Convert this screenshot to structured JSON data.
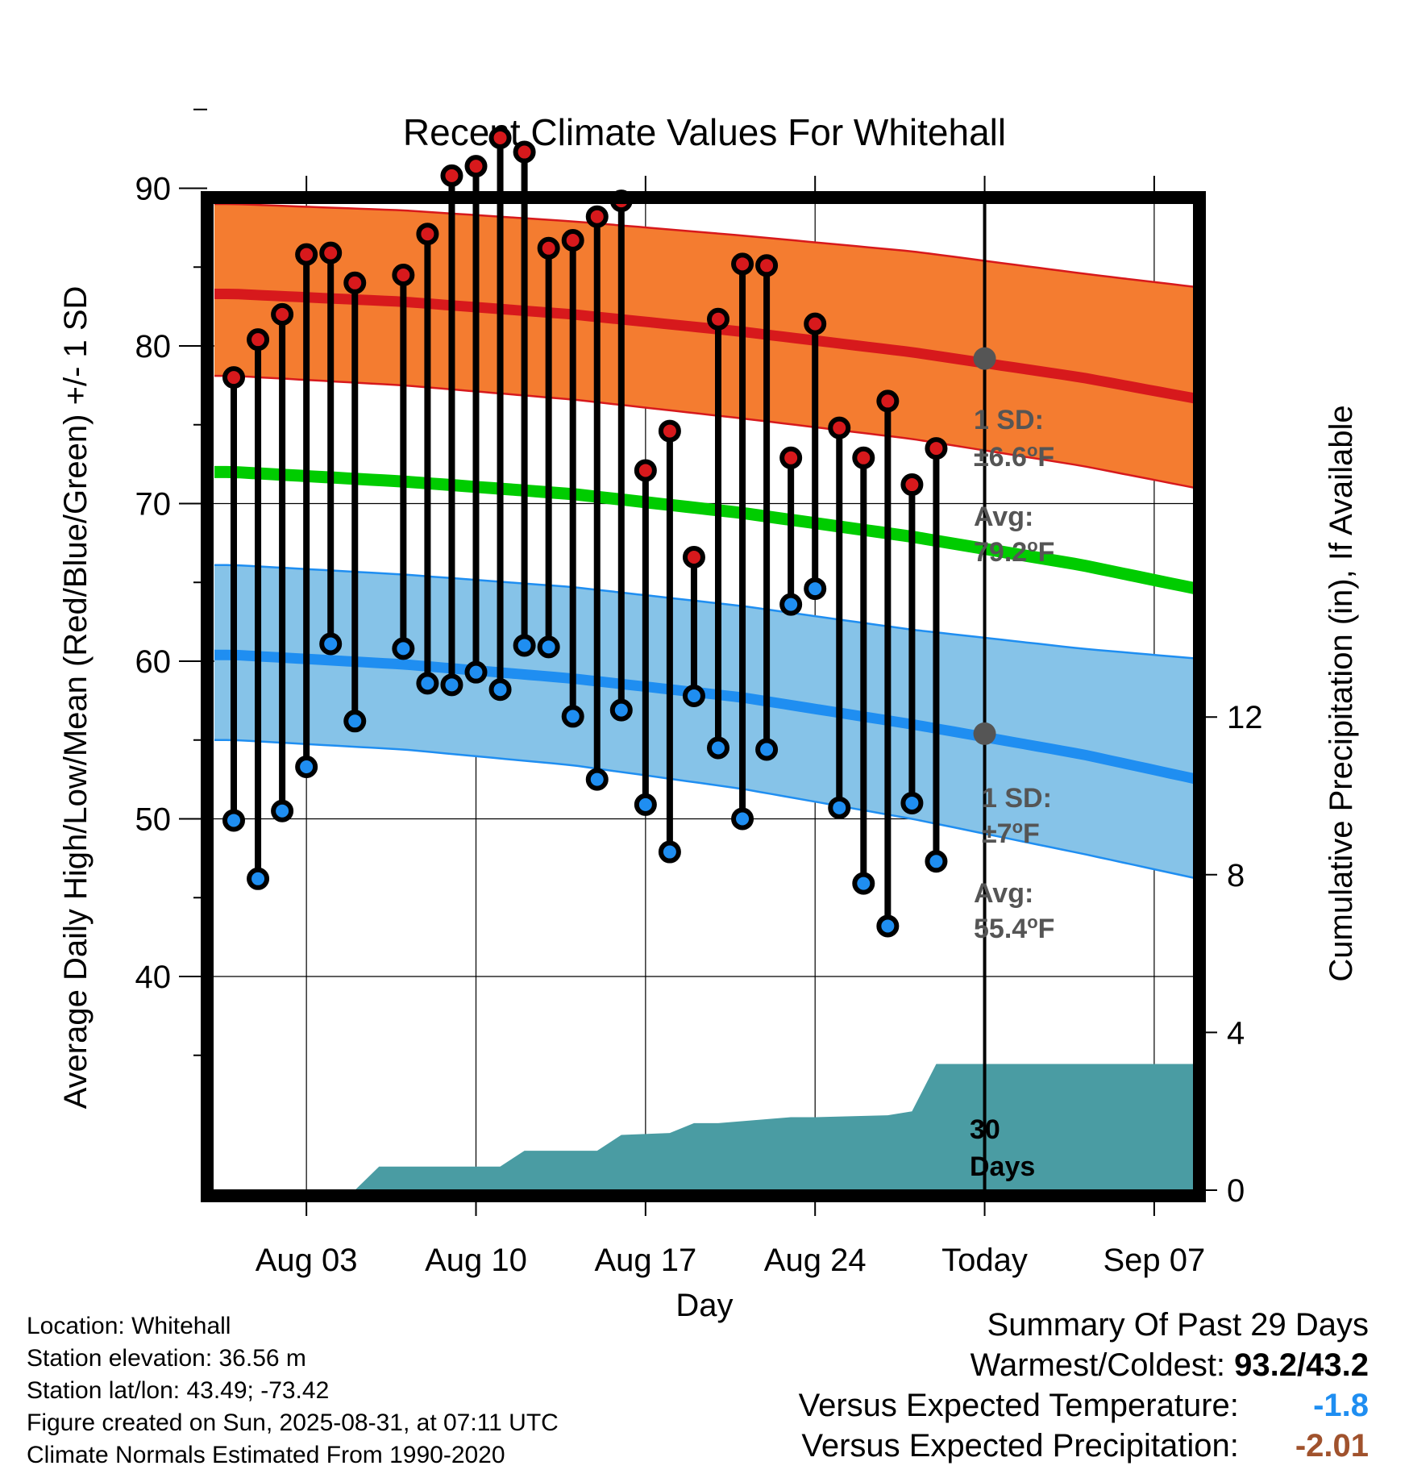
{
  "chart_data": {
    "type": "line",
    "title": "Recent Climate Values For Whitehall",
    "xlabel": "Day",
    "ylabel": "Average Daily High/Low/Mean (Red/Blue/Green) +/- 1 SD",
    "y2label": "Cumulative Precipitation (in), If Available",
    "x_ticks": [
      "Aug 03",
      "Aug 10",
      "Aug 17",
      "Aug 24",
      "Today",
      "Sep 07"
    ],
    "ylim": [
      35,
      98
    ],
    "y_ticks": [
      40,
      50,
      60,
      70,
      80,
      90
    ],
    "y2lim": [
      0,
      30
    ],
    "y2_ticks": [
      0,
      4,
      8,
      12
    ],
    "grid": true,
    "daily": {
      "days": [
        "Jul 31",
        "Aug 01",
        "Aug 02",
        "Aug 03",
        "Aug 04",
        "Aug 05",
        "Aug 06",
        "Aug 07",
        "Aug 08",
        "Aug 09",
        "Aug 10",
        "Aug 11",
        "Aug 12",
        "Aug 13",
        "Aug 14",
        "Aug 15",
        "Aug 16",
        "Aug 17",
        "Aug 18",
        "Aug 19",
        "Aug 20",
        "Aug 21",
        "Aug 22",
        "Aug 23",
        "Aug 24",
        "Aug 25",
        "Aug 26",
        "Aug 27",
        "Aug 28",
        "Aug 29",
        "Aug 30"
      ],
      "high": [
        78.0,
        80.4,
        82.0,
        85.8,
        85.9,
        84.0,
        null,
        84.5,
        87.1,
        90.8,
        91.4,
        93.2,
        92.3,
        86.2,
        86.7,
        88.2,
        89.2,
        72.1,
        74.6,
        66.6,
        81.7,
        85.2,
        85.1,
        72.9,
        81.4,
        74.8,
        72.9,
        76.5,
        71.2,
        73.5,
        null
      ],
      "low": [
        49.9,
        46.2,
        50.5,
        53.3,
        61.1,
        56.2,
        null,
        60.8,
        58.6,
        58.5,
        59.3,
        58.2,
        61.0,
        60.9,
        56.5,
        52.5,
        56.9,
        50.9,
        47.9,
        57.8,
        54.5,
        50.0,
        54.4,
        63.6,
        64.6,
        50.7,
        45.9,
        43.2,
        51.0,
        47.3,
        null
      ],
      "high_color": "#d7191c",
      "low_color": "#1f8ef1"
    },
    "normals": {
      "days_from_start": [
        0,
        7,
        14,
        21,
        28,
        35,
        41
      ],
      "avg_high": [
        83.3,
        82.8,
        82.0,
        80.9,
        79.6,
        78.0,
        76.3
      ],
      "high_sd_upper": [
        89.0,
        88.6,
        87.9,
        87.0,
        86.0,
        84.6,
        83.5
      ],
      "high_sd_lower": [
        78.1,
        77.5,
        76.6,
        75.4,
        74.1,
        72.4,
        70.6
      ],
      "avg_mean": [
        72.0,
        71.4,
        70.6,
        69.4,
        67.9,
        66.1,
        64.2
      ],
      "avg_low": [
        60.4,
        59.8,
        58.9,
        57.7,
        56.0,
        54.1,
        52.1
      ],
      "low_sd_upper": [
        66.1,
        65.5,
        64.7,
        63.5,
        62.0,
        60.8,
        60.0
      ],
      "low_sd_lower": [
        55.0,
        54.4,
        53.4,
        51.9,
        50.0,
        47.8,
        45.8
      ],
      "band_high_color": "#f47c30",
      "band_low_color": "#86c3e8",
      "mean_color": "#00cc00"
    },
    "precip": {
      "days_from_start": [
        0,
        5,
        6,
        11,
        12,
        15,
        16,
        18,
        19,
        20,
        23,
        24,
        27,
        28,
        29,
        30,
        41
      ],
      "cumulative": [
        0,
        0,
        0.6,
        0.6,
        1.0,
        1.0,
        1.4,
        1.45,
        1.7,
        1.7,
        1.85,
        1.85,
        1.9,
        2.0,
        3.2,
        3.2,
        3.2
      ],
      "color": "#4a9ca3"
    },
    "today": {
      "label": "Today",
      "avg_high": 79.2,
      "avg_low": 55.4
    },
    "annotations": {
      "high_sd_label": "1 SD:",
      "high_sd_value": "±6.6",
      "high_avg_label": "Avg:",
      "high_avg_value": "79.2",
      "low_sd_label": "1 SD:",
      "low_sd_value": "±7",
      "low_avg_label": "Avg:",
      "low_avg_value": "55.4",
      "unit_sup": "o",
      "unit_letter": "F",
      "days_line1": "30",
      "days_line2": "Days"
    }
  },
  "info": {
    "location": "Location: Whitehall",
    "elevation": "Station elevation: 36.56 m",
    "latlon": "Station lat/lon: 43.49; -73.42",
    "created": "Figure created on Sun, 2025-08-31, at 07:11 UTC",
    "normals": "Climate Normals Estimated From 1990-2020"
  },
  "summary": {
    "title": "Summary Of Past 29 Days",
    "warm_cold_label": "Warmest/Coldest:",
    "warm_cold_value": "93.2/43.2",
    "temp_label": "Versus Expected Temperature:",
    "temp_value": "-1.8",
    "temp_color": "#1f8ef1",
    "precip_label": "Versus Expected Precipitation:",
    "precip_value": "-2.01",
    "precip_color": "#a0522d"
  }
}
